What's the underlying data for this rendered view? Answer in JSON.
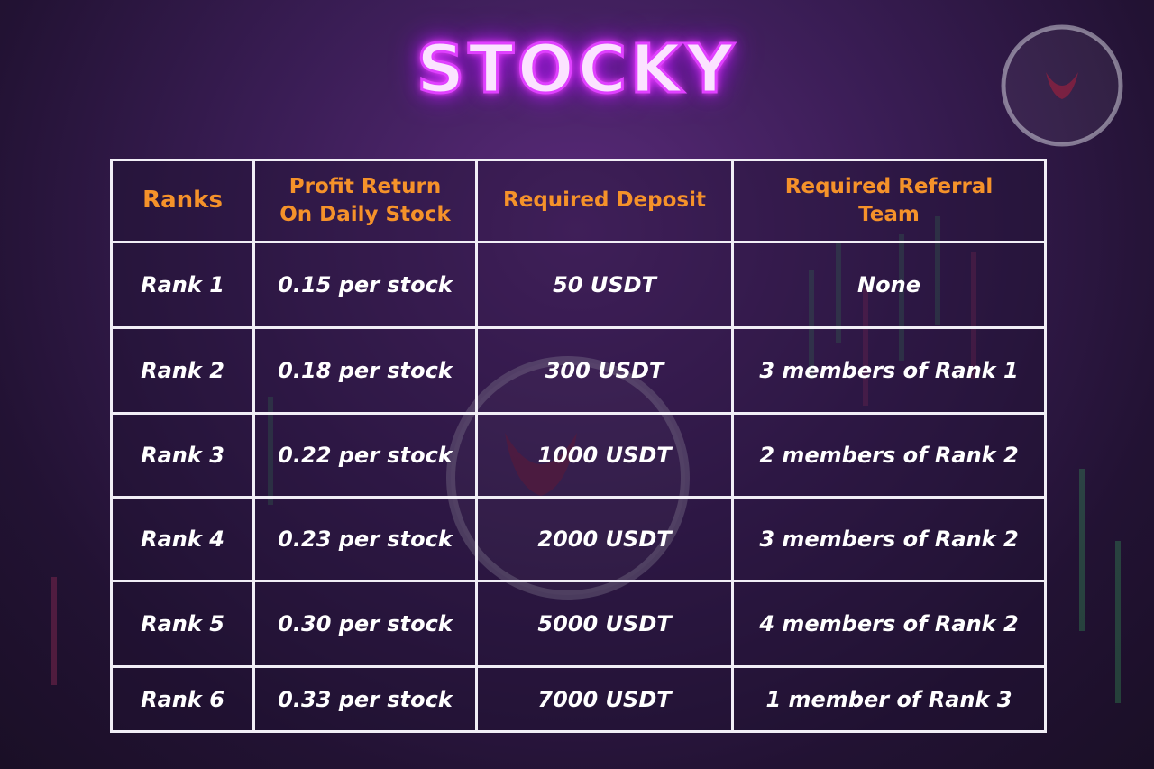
{
  "header": {
    "title": "STOCKY"
  },
  "table": {
    "columns": [
      "Ranks",
      "Profit Return On Daily Stock",
      "Required Deposit",
      "Required Referral Team"
    ],
    "rows": [
      [
        "Rank 1",
        "0.15 per stock",
        "50 USDT",
        "None"
      ],
      [
        "Rank 2",
        "0.18 per stock",
        "300 USDT",
        "3 members of Rank 1"
      ],
      [
        "Rank 3",
        "0.22 per stock",
        "1000 USDT",
        "2 members of Rank 2"
      ],
      [
        "Rank 4",
        "0.23 per stock",
        "2000 USDT",
        "3 members of Rank 2"
      ],
      [
        "Rank 5",
        "0.30 per stock",
        "5000 USDT",
        "4 members of Rank 2"
      ],
      [
        "Rank 6",
        "0.33 per stock",
        "7000 USDT",
        "1 member of Rank 3"
      ]
    ]
  }
}
